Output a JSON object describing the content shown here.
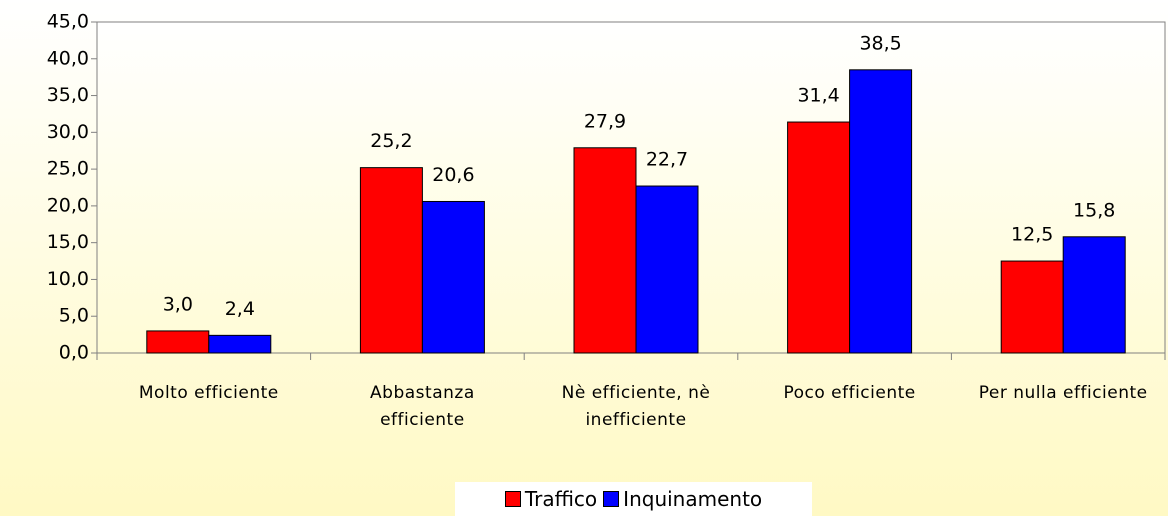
{
  "chart_data": {
    "type": "bar",
    "categories": [
      "Molto efficiente",
      "Abbastanza efficiente",
      "Nè efficiente, nè inefficiente",
      "Poco efficiente",
      "Per nulla efficiente"
    ],
    "series": [
      {
        "name": "Traffico",
        "color": "#ff0000",
        "values": [
          3.0,
          25.2,
          27.9,
          31.4,
          12.5
        ],
        "value_labels": [
          "3,0",
          "25,2",
          "27,9",
          "31,4",
          "12,5"
        ]
      },
      {
        "name": "Inquinamento",
        "color": "#0000ff",
        "values": [
          2.4,
          20.6,
          22.7,
          38.5,
          15.8
        ],
        "value_labels": [
          "2,4",
          "20,6",
          "22,7",
          "38,5",
          "15,8"
        ]
      }
    ],
    "ylim": [
      0,
      45
    ],
    "yticks": [
      {
        "value": 0,
        "label": "0,0"
      },
      {
        "value": 5,
        "label": "5,0"
      },
      {
        "value": 10,
        "label": "10,0"
      },
      {
        "value": 15,
        "label": "15,0"
      },
      {
        "value": 20,
        "label": "20,0"
      },
      {
        "value": 25,
        "label": "25,0"
      },
      {
        "value": 30,
        "label": "30,0"
      },
      {
        "value": 35,
        "label": "35,0"
      },
      {
        "value": 40,
        "label": "40,0"
      },
      {
        "value": 45,
        "label": "45,0"
      }
    ],
    "grid": false,
    "legend": "bottom"
  }
}
